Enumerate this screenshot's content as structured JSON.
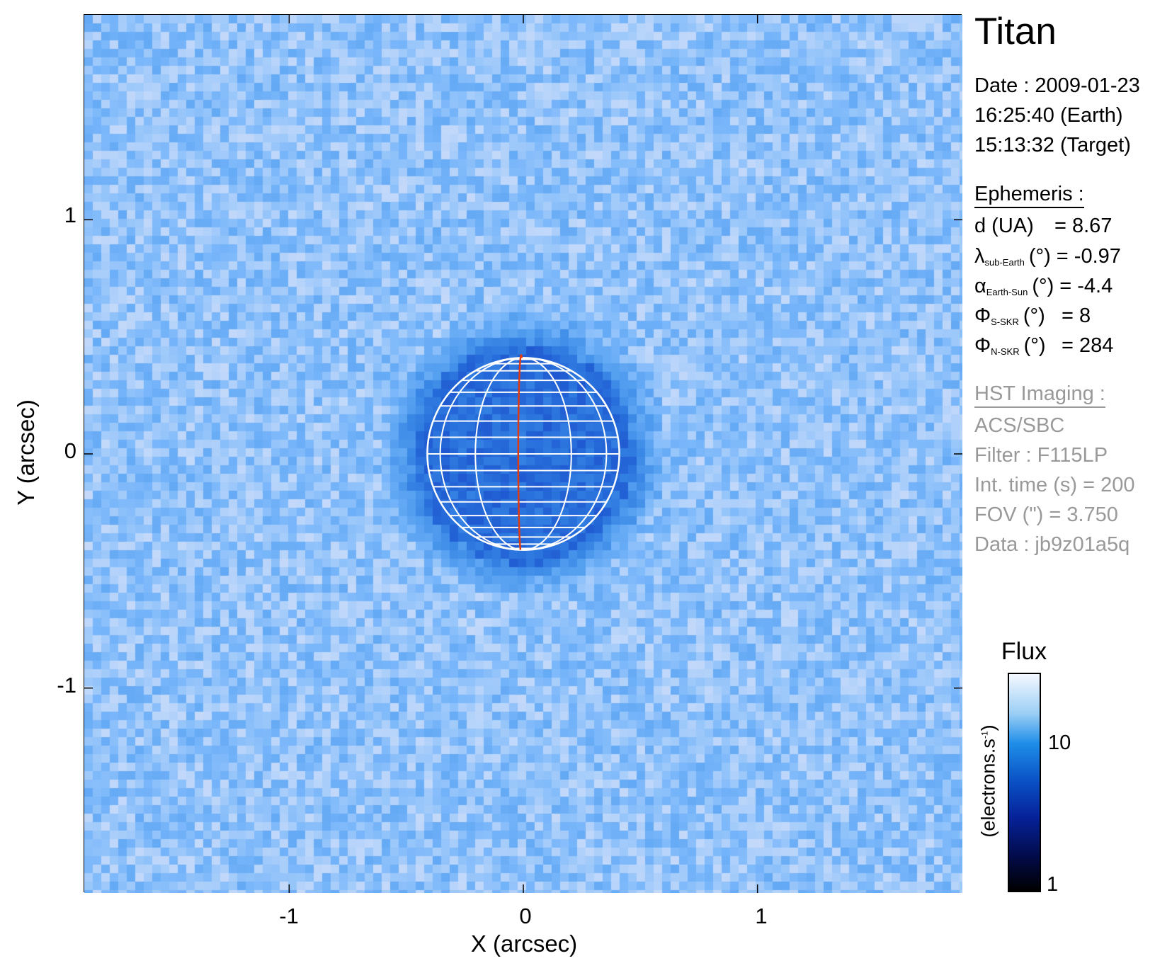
{
  "chart_data": {
    "type": "heatmap",
    "title": "Titan",
    "xlabel": "X (arcsec)",
    "ylabel": "Y (arcsec)",
    "xlim": [
      -1.875,
      1.875
    ],
    "ylim": [
      -1.875,
      1.875
    ],
    "x_ticks": [
      "-1",
      "0",
      "1"
    ],
    "y_ticks": [
      "1",
      "0",
      "-1"
    ],
    "x_tick_values": [
      -1,
      0,
      1
    ],
    "y_tick_values": [
      1,
      0,
      -1
    ],
    "disk": {
      "center": [
        0,
        0
      ],
      "radius_arcsec": 0.41,
      "central_meridian_color": "#e03a10",
      "grid_color": "#ffffff"
    },
    "colorbar": {
      "title": "Flux",
      "label": "(electrons.s",
      "label_sup": "-1",
      "label_end": ")",
      "scale": "log",
      "range": [
        1,
        30
      ],
      "ticks": [
        "10",
        "1"
      ],
      "tick_values": [
        10,
        1
      ],
      "colormap": [
        "#000000",
        "#06229a",
        "#1e8ee8",
        "#9ccff5",
        "#f4f8ff"
      ]
    }
  },
  "info": {
    "date": "Date : 2009-01-23",
    "time_earth": "16:25:40 (Earth)",
    "time_target": "15:13:32 (Target)",
    "ephemeris_title": "Ephemeris :",
    "ephemeris": [
      {
        "sym": "d (UA)",
        "sub": "",
        "unit": "",
        "value": "= 8.67"
      },
      {
        "sym": "λ",
        "sub": "sub-Earth",
        "unit": "(°)",
        "value": "= -0.97"
      },
      {
        "sym": "α",
        "sub": "Earth-Sun",
        "unit": "(°)",
        "value": "= -4.4"
      },
      {
        "sym": "Φ",
        "sub": "S-SKR",
        "unit": "(°)",
        "value": "= 8"
      },
      {
        "sym": "Φ",
        "sub": "N-SKR",
        "unit": "(°)",
        "value": "= 284"
      }
    ],
    "hst_title": "HST Imaging :",
    "instrument": "ACS/SBC",
    "filter": "Filter : F115LP",
    "int_time": "Int. time (s) = 200",
    "fov": "FOV (\") = 3.750",
    "data_id": "Data : jb9z01a5q"
  }
}
